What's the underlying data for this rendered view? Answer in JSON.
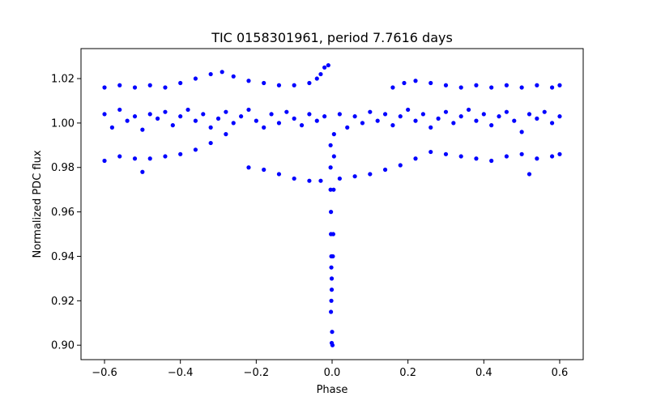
{
  "chart_data": {
    "type": "scatter",
    "title": "TIC 0158301961, period 7.7616 days",
    "xlabel": "Phase",
    "ylabel": "Normalized PDC flux",
    "xlim": [
      -0.662,
      0.662
    ],
    "ylim": [
      0.8935,
      1.0335
    ],
    "xticks": [
      -0.6,
      -0.4,
      -0.2,
      0.0,
      0.2,
      0.4,
      0.6
    ],
    "xtick_labels": [
      "−0.6",
      "−0.4",
      "−0.2",
      "0.0",
      "0.2",
      "0.4",
      "0.6"
    ],
    "yticks": [
      0.9,
      0.92,
      0.94,
      0.96,
      0.98,
      1.0,
      1.02
    ],
    "ytick_labels": [
      "0.90",
      "0.92",
      "0.94",
      "0.96",
      "0.98",
      "1.00",
      "1.02"
    ],
    "grid": false,
    "marker_color": "#0000ff",
    "series": [
      {
        "values": [
          [
            -0.6,
            1.004
          ],
          [
            -0.58,
            0.998
          ],
          [
            -0.56,
            1.006
          ],
          [
            -0.54,
            1.001
          ],
          [
            -0.52,
            1.003
          ],
          [
            -0.5,
            0.997
          ],
          [
            -0.48,
            1.004
          ],
          [
            -0.46,
            1.002
          ],
          [
            -0.44,
            1.005
          ],
          [
            -0.42,
            0.999
          ],
          [
            -0.4,
            1.003
          ],
          [
            -0.38,
            1.006
          ],
          [
            -0.36,
            1.001
          ],
          [
            -0.34,
            1.004
          ],
          [
            -0.32,
            0.998
          ],
          [
            -0.3,
            1.002
          ],
          [
            -0.28,
            1.005
          ],
          [
            -0.26,
            1.0
          ],
          [
            -0.24,
            1.003
          ],
          [
            -0.22,
            1.006
          ],
          [
            -0.2,
            1.001
          ],
          [
            -0.18,
            0.998
          ],
          [
            -0.16,
            1.004
          ],
          [
            -0.14,
            1.0
          ],
          [
            -0.12,
            1.005
          ],
          [
            -0.1,
            1.002
          ],
          [
            -0.08,
            0.999
          ],
          [
            -0.06,
            1.004
          ],
          [
            -0.04,
            1.001
          ],
          [
            -0.02,
            1.003
          ],
          [
            0.02,
            1.004
          ],
          [
            0.04,
            0.998
          ],
          [
            0.06,
            1.003
          ],
          [
            0.08,
            1.0
          ],
          [
            0.1,
            1.005
          ],
          [
            0.12,
            1.001
          ],
          [
            0.14,
            1.004
          ],
          [
            0.16,
            0.999
          ],
          [
            0.18,
            1.003
          ],
          [
            0.2,
            1.006
          ],
          [
            0.22,
            1.001
          ],
          [
            0.24,
            1.004
          ],
          [
            0.26,
            0.998
          ],
          [
            0.28,
            1.002
          ],
          [
            0.3,
            1.005
          ],
          [
            0.32,
            1.0
          ],
          [
            0.34,
            1.003
          ],
          [
            0.36,
            1.006
          ],
          [
            0.38,
            1.001
          ],
          [
            0.4,
            1.004
          ],
          [
            0.42,
            0.999
          ],
          [
            0.44,
            1.003
          ],
          [
            0.46,
            1.005
          ],
          [
            0.48,
            1.001
          ],
          [
            0.5,
            0.996
          ],
          [
            0.52,
            1.004
          ],
          [
            0.54,
            1.002
          ],
          [
            0.56,
            1.005
          ],
          [
            0.58,
            1.0
          ],
          [
            0.6,
            1.003
          ],
          [
            -0.6,
            1.016
          ],
          [
            -0.56,
            1.017
          ],
          [
            -0.52,
            1.016
          ],
          [
            -0.48,
            1.017
          ],
          [
            -0.44,
            1.016
          ],
          [
            -0.4,
            1.018
          ],
          [
            -0.36,
            1.02
          ],
          [
            -0.32,
            1.022
          ],
          [
            -0.29,
            1.023
          ],
          [
            -0.26,
            1.021
          ],
          [
            -0.22,
            1.019
          ],
          [
            -0.18,
            1.018
          ],
          [
            -0.14,
            1.017
          ],
          [
            -0.1,
            1.017
          ],
          [
            -0.06,
            1.018
          ],
          [
            -0.04,
            1.02
          ],
          [
            -0.03,
            1.022
          ],
          [
            -0.02,
            1.025
          ],
          [
            -0.01,
            1.026
          ],
          [
            0.16,
            1.016
          ],
          [
            0.19,
            1.018
          ],
          [
            0.22,
            1.019
          ],
          [
            0.26,
            1.018
          ],
          [
            0.3,
            1.017
          ],
          [
            0.34,
            1.016
          ],
          [
            0.38,
            1.017
          ],
          [
            0.42,
            1.016
          ],
          [
            0.46,
            1.017
          ],
          [
            0.5,
            1.016
          ],
          [
            0.54,
            1.017
          ],
          [
            0.58,
            1.016
          ],
          [
            0.6,
            1.017
          ],
          [
            -0.6,
            0.983
          ],
          [
            -0.56,
            0.985
          ],
          [
            -0.52,
            0.984
          ],
          [
            -0.5,
            0.978
          ],
          [
            -0.48,
            0.984
          ],
          [
            -0.44,
            0.985
          ],
          [
            -0.4,
            0.986
          ],
          [
            -0.36,
            0.988
          ],
          [
            -0.32,
            0.991
          ],
          [
            -0.28,
            0.995
          ],
          [
            -0.22,
            0.98
          ],
          [
            -0.18,
            0.979
          ],
          [
            -0.14,
            0.977
          ],
          [
            -0.1,
            0.975
          ],
          [
            -0.06,
            0.974
          ],
          [
            -0.03,
            0.974
          ],
          [
            0.02,
            0.975
          ],
          [
            0.06,
            0.976
          ],
          [
            0.1,
            0.977
          ],
          [
            0.14,
            0.979
          ],
          [
            0.18,
            0.981
          ],
          [
            0.22,
            0.984
          ],
          [
            0.26,
            0.987
          ],
          [
            0.3,
            0.986
          ],
          [
            0.34,
            0.985
          ],
          [
            0.38,
            0.984
          ],
          [
            0.42,
            0.983
          ],
          [
            0.46,
            0.985
          ],
          [
            0.5,
            0.986
          ],
          [
            0.52,
            0.977
          ],
          [
            0.54,
            0.984
          ],
          [
            0.58,
            0.985
          ],
          [
            0.6,
            0.986
          ],
          [
            -0.004,
            0.99
          ],
          [
            -0.004,
            0.98
          ],
          [
            -0.004,
            0.97
          ],
          [
            -0.003,
            0.96
          ],
          [
            -0.003,
            0.95
          ],
          [
            -0.002,
            0.94
          ],
          [
            -0.002,
            0.935
          ],
          [
            -0.001,
            0.93
          ],
          [
            -0.001,
            0.925
          ],
          [
            -0.002,
            0.92
          ],
          [
            -0.003,
            0.915
          ],
          [
            0.0,
            0.906
          ],
          [
            -0.001,
            0.901
          ],
          [
            0.001,
            0.9
          ],
          [
            0.002,
            0.94
          ],
          [
            0.003,
            0.95
          ],
          [
            0.004,
            0.97
          ],
          [
            0.005,
            0.985
          ],
          [
            0.005,
            0.995
          ]
        ]
      }
    ]
  }
}
